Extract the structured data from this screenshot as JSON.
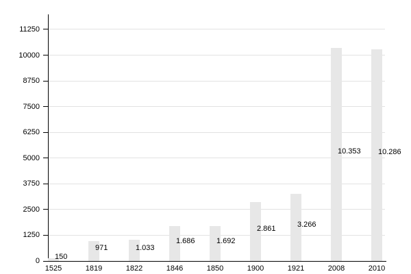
{
  "chart_data": {
    "type": "bar",
    "title": "",
    "xlabel": "",
    "ylabel": "",
    "categories": [
      "1525",
      "1819",
      "1822",
      "1846",
      "1850",
      "1900",
      "1921",
      "2008",
      "2010"
    ],
    "values": [
      150,
      971,
      1033,
      1686,
      1692,
      2861,
      3266,
      10353,
      10286
    ],
    "value_labels": [
      "150",
      "971",
      "1.033",
      "1.686",
      "1.692",
      "2.861",
      "3.266",
      "10.353",
      "10.286"
    ],
    "ylim": [
      0,
      11250
    ],
    "y_ticks": [
      0,
      1250,
      2500,
      3750,
      5000,
      6250,
      7500,
      8750,
      10000,
      11250
    ],
    "y_tick_labels": [
      "0",
      "1250",
      "2500",
      "3750",
      "5000",
      "6250",
      "7500",
      "8750",
      "10000",
      "11250"
    ],
    "grid": "horizontal",
    "legend": "none",
    "colors": {
      "bar_fill": "#e7e7e7",
      "gridline": "#e2e2e2",
      "axis": "#000000",
      "text": "#000000",
      "background": "#ffffff"
    }
  }
}
